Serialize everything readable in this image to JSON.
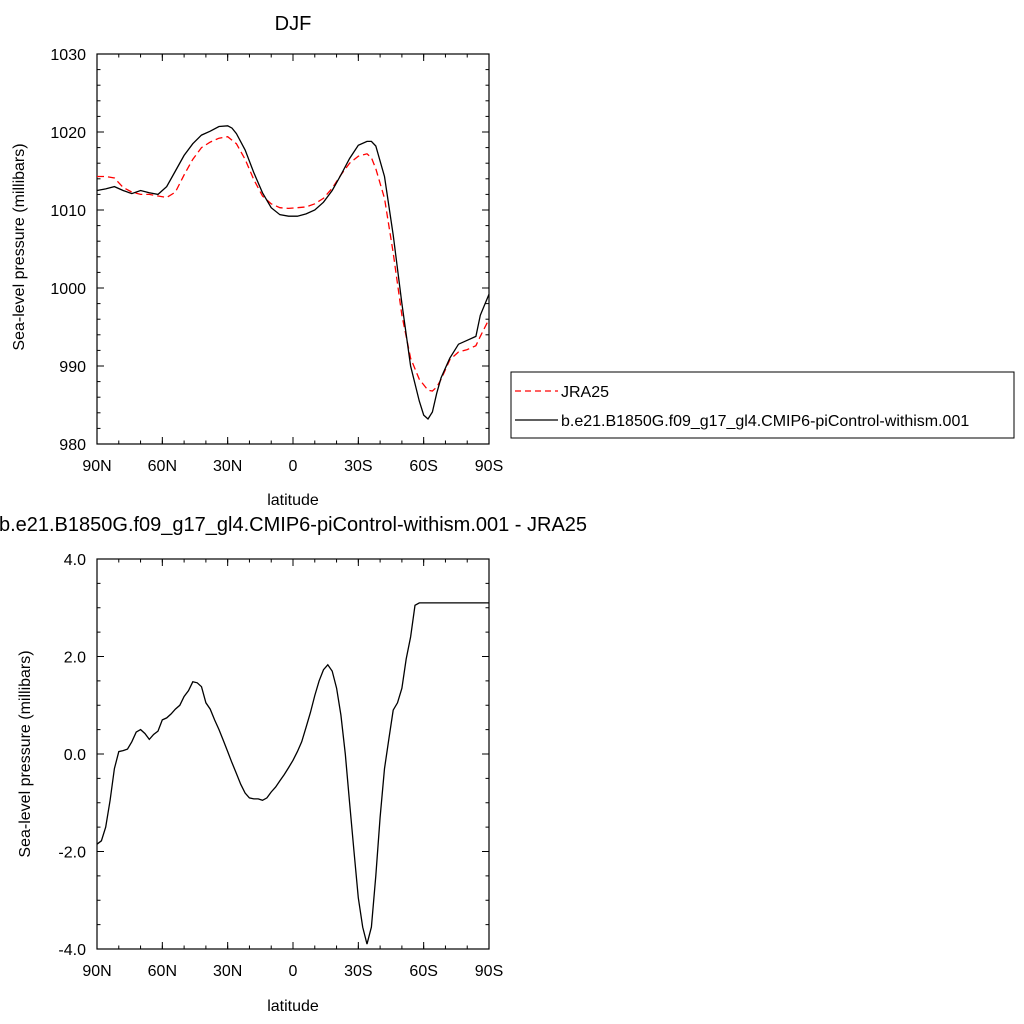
{
  "chart_data": [
    {
      "type": "line",
      "title": "DJF",
      "xlabel": "latitude",
      "ylabel": "Sea-level pressure (millibars)",
      "xticks": [
        "90N",
        "60N",
        "30N",
        "0",
        "30S",
        "60S",
        "90S"
      ],
      "xtick_values": [
        90,
        60,
        30,
        0,
        -30,
        -60,
        -90
      ],
      "xlim": [
        90,
        -90
      ],
      "yticks": [
        "980",
        "990",
        "1000",
        "1010",
        "1020",
        "1030"
      ],
      "ylim": [
        980,
        1030
      ],
      "legend_position": "right",
      "series": [
        {
          "name": "JRA25",
          "color": "#ff0000",
          "dash": "dashed",
          "x": [
            90,
            86,
            82,
            78,
            74,
            70,
            66,
            62,
            58,
            54,
            50,
            46,
            42,
            38,
            34,
            30,
            26,
            22,
            18,
            14,
            10,
            6,
            2,
            -2,
            -6,
            -10,
            -14,
            -18,
            -22,
            -26,
            -30,
            -34,
            -36,
            -38,
            -42,
            -46,
            -50,
            -54,
            -58,
            -62,
            -64,
            -66,
            -68,
            -72,
            -76,
            -80,
            -84,
            -86,
            -90
          ],
          "y": [
            1014.3,
            1014.3,
            1014.1,
            1012.9,
            1012.3,
            1012.0,
            1012.0,
            1011.8,
            1011.6,
            1012.3,
            1014.5,
            1016.5,
            1018.0,
            1018.7,
            1019.2,
            1019.4,
            1018.5,
            1016.5,
            1013.9,
            1011.8,
            1010.8,
            1010.3,
            1010.2,
            1010.3,
            1010.4,
            1010.8,
            1011.5,
            1012.8,
            1014.5,
            1016.0,
            1016.9,
            1017.2,
            1016.7,
            1015.3,
            1011.5,
            1004.5,
            996.5,
            991.0,
            988.3,
            986.9,
            986.8,
            987.3,
            988.3,
            990.8,
            991.8,
            992.1,
            992.6,
            993.8,
            996.0
          ]
        },
        {
          "name": "b.e21.B1850G.f09_g17_gl4.CMIP6-piControl-withism.001",
          "color": "#000000",
          "dash": "solid",
          "x": [
            90,
            86,
            82,
            78,
            74,
            70,
            66,
            62,
            58,
            54,
            50,
            46,
            42,
            38,
            34,
            30,
            28,
            26,
            22,
            18,
            14,
            10,
            6,
            2,
            -2,
            -6,
            -10,
            -14,
            -18,
            -22,
            -26,
            -30,
            -34,
            -36,
            -38,
            -42,
            -46,
            -50,
            -54,
            -58,
            -60,
            -62,
            -64,
            -66,
            -68,
            -72,
            -76,
            -80,
            -84,
            -86,
            -90
          ],
          "y": [
            1012.5,
            1012.7,
            1013.0,
            1012.5,
            1012.1,
            1012.5,
            1012.2,
            1012.0,
            1013.0,
            1015.0,
            1017.0,
            1018.5,
            1019.6,
            1020.1,
            1020.7,
            1020.8,
            1020.5,
            1019.8,
            1017.7,
            1014.8,
            1012.2,
            1010.3,
            1009.4,
            1009.2,
            1009.2,
            1009.5,
            1010.0,
            1011.0,
            1012.5,
            1014.5,
            1016.6,
            1018.3,
            1018.8,
            1018.8,
            1018.2,
            1014.3,
            1006.8,
            998.0,
            990.0,
            985.5,
            983.7,
            983.2,
            984.1,
            986.5,
            988.5,
            991.0,
            992.8,
            993.3,
            993.8,
            996.5,
            999.2
          ]
        }
      ]
    },
    {
      "type": "line",
      "title": "b.e21.B1850G.f09_g17_gl4.CMIP6-piControl-withism.001 - JRA25",
      "xlabel": "latitude",
      "ylabel": "Sea-level pressure (millibars)",
      "xticks": [
        "90N",
        "60N",
        "30N",
        "0",
        "30S",
        "60S",
        "90S"
      ],
      "xtick_values": [
        90,
        60,
        30,
        0,
        -30,
        -60,
        -90
      ],
      "xlim": [
        90,
        -90
      ],
      "yticks": [
        "-4.0",
        "-2.0",
        "0.0",
        "2.0",
        "4.0"
      ],
      "ylim": [
        -4,
        4
      ],
      "series": [
        {
          "color": "#000000",
          "dash": "solid",
          "x": [
            90,
            88,
            86,
            84,
            82,
            80,
            78,
            76,
            74,
            72,
            70,
            68,
            66,
            64,
            62,
            60,
            58,
            56,
            54,
            52,
            50,
            48,
            46,
            44,
            42,
            40,
            38,
            36,
            34,
            32,
            30,
            28,
            26,
            24,
            22,
            20,
            18,
            16,
            14,
            12,
            10,
            8,
            6,
            4,
            2,
            0,
            -2,
            -4,
            -6,
            -8,
            -10,
            -12,
            -14,
            -16,
            -18,
            -20,
            -22,
            -24,
            -26,
            -28,
            -30,
            -32,
            -34,
            -36,
            -38,
            -40,
            -42,
            -44,
            -46,
            -48,
            -50,
            -52,
            -54,
            -56,
            -58,
            -60,
            -62,
            -64,
            -66,
            -68,
            -70,
            -72,
            -74,
            -76,
            -78,
            -80,
            -82,
            -84,
            -86,
            -88,
            -90
          ],
          "y": [
            -1.85,
            -1.78,
            -1.5,
            -0.95,
            -0.3,
            0.05,
            0.07,
            0.1,
            0.25,
            0.45,
            0.5,
            0.42,
            0.3,
            0.4,
            0.47,
            0.7,
            0.74,
            0.82,
            0.92,
            1.0,
            1.18,
            1.3,
            1.48,
            1.46,
            1.38,
            1.05,
            0.92,
            0.7,
            0.5,
            0.28,
            0.05,
            -0.18,
            -0.4,
            -0.62,
            -0.8,
            -0.9,
            -0.92,
            -0.92,
            -0.95,
            -0.9,
            -0.78,
            -0.68,
            -0.55,
            -0.42,
            -0.28,
            -0.13,
            0.05,
            0.25,
            0.55,
            0.85,
            1.2,
            1.5,
            1.73,
            1.83,
            1.7,
            1.35,
            0.8,
            0.0,
            -1.0,
            -2.0,
            -2.95,
            -3.55,
            -3.9,
            -3.55,
            -2.5,
            -1.3,
            -0.3,
            0.3,
            0.9,
            1.05,
            1.35,
            1.95,
            2.4,
            3.05,
            3.1,
            3.1,
            3.1,
            3.1,
            3.1,
            3.1,
            3.1,
            3.1,
            3.1,
            3.1,
            3.1,
            3.1,
            3.1,
            3.1,
            3.1,
            3.1,
            3.1
          ]
        }
      ]
    }
  ]
}
